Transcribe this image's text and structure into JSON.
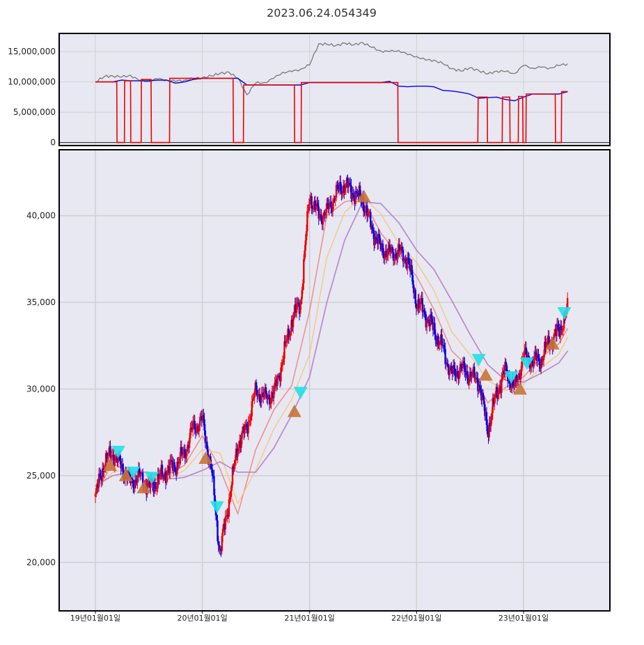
{
  "chart_data": [
    {
      "type": "line",
      "panel": "top",
      "title": "2023.06.24.054349",
      "ylim": [
        -500000,
        18000000
      ],
      "yticks": [
        0,
        5000000,
        10000000,
        15000000
      ],
      "ytick_labels": [
        "0",
        "5,000,000",
        "10,000,000",
        "15,000,000"
      ],
      "grid": true,
      "colors": {
        "gray": "#808080",
        "blue": "#0000ee",
        "red": "#ee0000"
      },
      "series": [
        {
          "color": "#808080",
          "x": [
            "2019-01-01",
            "2019-02-01",
            "2019-03-01",
            "2019-04-01",
            "2019-05-01",
            "2019-06-01",
            "2019-07-01",
            "2019-08-01",
            "2019-09-01",
            "2019-10-01",
            "2019-11-01",
            "2019-12-01",
            "2020-01-01",
            "2020-02-01",
            "2020-03-01",
            "2020-04-01",
            "2020-05-01",
            "2020-06-01",
            "2020-07-01",
            "2020-08-01",
            "2020-09-01",
            "2020-10-01",
            "2020-11-01",
            "2020-12-01",
            "2021-01-01",
            "2021-02-01",
            "2021-03-01",
            "2021-04-01",
            "2021-05-01",
            "2021-06-01",
            "2021-07-01",
            "2021-08-01",
            "2021-09-01",
            "2021-10-01",
            "2021-11-01",
            "2021-12-01",
            "2022-01-01",
            "2022-02-01",
            "2022-03-01",
            "2022-04-01",
            "2022-05-01",
            "2022-06-01",
            "2022-07-01",
            "2022-08-01",
            "2022-09-01",
            "2022-10-01",
            "2022-11-01",
            "2022-12-01",
            "2023-01-01",
            "2023-02-01",
            "2023-03-01",
            "2023-04-01",
            "2023-05-01",
            "2023-06-01"
          ],
          "values": [
            10000000,
            10900000,
            11000000,
            10800000,
            11100000,
            10200000,
            10100000,
            10500000,
            10300000,
            10100000,
            10300000,
            10500000,
            10700000,
            11000000,
            11400000,
            11600000,
            10600000,
            7900000,
            9800000,
            9900000,
            10600000,
            11600000,
            11700000,
            12100000,
            12800000,
            16300000,
            16200000,
            16000000,
            16400000,
            16100000,
            16500000,
            15700000,
            15100000,
            15000000,
            15200000,
            14500000,
            14200000,
            13600000,
            13600000,
            13000000,
            12200000,
            11800000,
            12300000,
            11900000,
            11300000,
            11800000,
            11700000,
            11400000,
            12700000,
            12300000,
            12400000,
            12300000,
            12700000,
            13000000
          ]
        },
        {
          "color": "#0000ee",
          "x": [
            "2019-01-01",
            "2019-02-01",
            "2019-03-01",
            "2019-04-01",
            "2019-05-01",
            "2019-06-01",
            "2019-07-01",
            "2019-08-01",
            "2019-09-01",
            "2019-10-01",
            "2019-11-01",
            "2019-12-01",
            "2020-01-01",
            "2020-02-01",
            "2020-03-01",
            "2020-04-01",
            "2020-05-01",
            "2020-06-01",
            "2020-07-01",
            "2020-08-01",
            "2020-09-01",
            "2020-10-01",
            "2020-11-01",
            "2020-12-01",
            "2021-01-01",
            "2021-02-01",
            "2021-03-01",
            "2021-04-01",
            "2021-05-01",
            "2021-06-01",
            "2021-07-01",
            "2021-08-01",
            "2021-09-01",
            "2021-10-01",
            "2021-11-01",
            "2021-12-01",
            "2022-01-01",
            "2022-02-01",
            "2022-03-01",
            "2022-04-01",
            "2022-05-01",
            "2022-06-01",
            "2022-07-01",
            "2022-08-01",
            "2022-09-01",
            "2022-10-01",
            "2022-11-01",
            "2022-12-01",
            "2023-01-01",
            "2023-02-01",
            "2023-03-01",
            "2023-04-01",
            "2023-05-01",
            "2023-06-01"
          ],
          "values": [
            10000000,
            10000000,
            10000000,
            10300000,
            10200000,
            10200000,
            10200000,
            10300000,
            10300000,
            9800000,
            10000000,
            10400000,
            10600000,
            10600000,
            10600000,
            10600000,
            10600000,
            9500000,
            9500000,
            9500000,
            9500000,
            9500000,
            9500000,
            9500000,
            9900000,
            9900000,
            9900000,
            9900000,
            9900000,
            9900000,
            9900000,
            9900000,
            9900000,
            10100000,
            9300000,
            9200000,
            9300000,
            9300000,
            9200000,
            8600000,
            8500000,
            8300000,
            8000000,
            7300000,
            7400000,
            7500000,
            7100000,
            6900000,
            7500000,
            8000000,
            8000000,
            8000000,
            8000000,
            8400000
          ]
        },
        {
          "color": "#ee0000",
          "x": [
            "2019-01-01",
            "2019-03-15",
            "2019-03-16",
            "2019-04-10",
            "2019-04-11",
            "2019-05-01",
            "2019-05-02",
            "2019-06-06",
            "2019-06-07",
            "2019-07-10",
            "2019-07-11",
            "2019-09-11",
            "2019-09-12",
            "2020-01-02",
            "2020-01-03",
            "2020-04-15",
            "2020-04-16",
            "2020-05-20",
            "2020-05-21",
            "2020-11-10",
            "2020-11-11",
            "2020-12-03",
            "2020-12-04",
            "2021-10-29",
            "2021-10-30",
            "2022-07-29",
            "2022-07-30",
            "2022-08-30",
            "2022-08-31",
            "2022-10-20",
            "2022-10-21",
            "2022-11-15",
            "2022-11-16",
            "2022-12-14",
            "2022-12-15",
            "2022-12-29",
            "2022-12-30",
            "2023-01-09",
            "2023-01-10",
            "2023-04-19",
            "2023-04-20",
            "2023-05-10",
            "2023-05-11",
            "2023-06-01"
          ],
          "values": [
            10000000,
            10000000,
            0,
            0,
            10200000,
            10200000,
            0,
            0,
            10400000,
            10400000,
            0,
            0,
            10600000,
            10600000,
            10600000,
            10600000,
            0,
            0,
            9500000,
            9500000,
            0,
            0,
            9900000,
            9900000,
            0,
            0,
            7500000,
            7500000,
            0,
            0,
            7500000,
            7500000,
            0,
            0,
            7600000,
            7600000,
            0,
            0,
            8000000,
            8000000,
            0,
            0,
            8400000,
            8400000
          ]
        }
      ]
    },
    {
      "type": "candlestick",
      "panel": "bottom",
      "ylim": [
        17200,
        43800
      ],
      "yticks": [
        20000,
        25000,
        30000,
        35000,
        40000
      ],
      "ytick_labels": [
        "20,000",
        "25,000",
        "30,000",
        "35,000",
        "40,000"
      ],
      "xlim": [
        "2018-10-21",
        "2023-08-15"
      ],
      "xticks": [
        "2019-01-01",
        "2020-01-01",
        "2021-01-01",
        "2022-01-01",
        "2023-01-01"
      ],
      "xtick_labels": [
        "19년01월01일",
        "20년01월01일",
        "21년01월01일",
        "22년01월01일",
        "23년01월01일"
      ],
      "grid": true,
      "colors": {
        "up": "#ee0000",
        "down": "#0000ee",
        "ma_fast": "#f08080",
        "ma_mid": "#f5c77e",
        "ma_slow": "#b57cc4",
        "buy_marker": "#c8733a",
        "sell_marker": "#22e0e8"
      },
      "price": {
        "x": [
          "2019-01-01",
          "2019-02-01",
          "2019-03-01",
          "2019-04-01",
          "2019-05-01",
          "2019-06-01",
          "2019-07-01",
          "2019-08-01",
          "2019-09-01",
          "2019-10-01",
          "2019-11-01",
          "2019-12-01",
          "2020-01-01",
          "2020-02-01",
          "2020-03-01",
          "2020-04-01",
          "2020-05-01",
          "2020-06-01",
          "2020-07-01",
          "2020-08-01",
          "2020-09-01",
          "2020-10-01",
          "2020-11-01",
          "2020-12-01",
          "2021-01-01",
          "2021-02-01",
          "2021-03-01",
          "2021-04-01",
          "2021-05-01",
          "2021-06-01",
          "2021-07-01",
          "2021-08-01",
          "2021-09-01",
          "2021-10-01",
          "2021-11-01",
          "2021-12-01",
          "2022-01-01",
          "2022-02-01",
          "2022-03-01",
          "2022-04-01",
          "2022-05-01",
          "2022-06-01",
          "2022-07-01",
          "2022-08-01",
          "2022-09-01",
          "2022-10-01",
          "2022-11-01",
          "2022-12-01",
          "2023-01-01",
          "2023-02-01",
          "2023-03-01",
          "2023-04-01",
          "2023-05-01",
          "2023-06-01"
        ],
        "values": [
          23800,
          25800,
          26300,
          25500,
          24600,
          25000,
          24300,
          24700,
          25300,
          25600,
          26300,
          27800,
          28200,
          25300,
          20500,
          23600,
          26800,
          27800,
          29900,
          29500,
          29700,
          31700,
          34000,
          35000,
          41200,
          40000,
          40200,
          41300,
          41800,
          41300,
          40900,
          39300,
          38100,
          37800,
          37900,
          37500,
          35000,
          34300,
          33400,
          32300,
          30800,
          31200,
          30800,
          30500,
          27600,
          29800,
          31100,
          30000,
          31900,
          31600,
          31700,
          32800,
          33300,
          34600
        ]
      },
      "ma_fast": {
        "x": [
          "2019-01-01",
          "2019-03-01",
          "2019-05-01",
          "2019-07-01",
          "2019-09-01",
          "2019-11-01",
          "2020-01-01",
          "2020-03-01",
          "2020-05-01",
          "2020-07-01",
          "2020-09-01",
          "2020-11-01",
          "2021-01-01",
          "2021-03-01",
          "2021-05-01",
          "2021-07-01",
          "2021-09-01",
          "2021-11-01",
          "2022-01-01",
          "2022-03-01",
          "2022-05-01",
          "2022-07-01",
          "2022-09-01",
          "2022-11-01",
          "2023-01-01",
          "2023-03-01",
          "2023-05-01",
          "2023-06-01"
        ],
        "values": [
          24000,
          25700,
          25200,
          24600,
          25000,
          25600,
          27300,
          25400,
          22800,
          26500,
          28800,
          30200,
          34500,
          40000,
          40800,
          41000,
          39000,
          37700,
          36500,
          34600,
          32200,
          31200,
          29200,
          30100,
          30700,
          31800,
          32600,
          33500
        ]
      },
      "ma_mid": {
        "x": [
          "2019-01-01",
          "2019-03-01",
          "2019-05-01",
          "2019-07-01",
          "2019-09-01",
          "2019-11-01",
          "2020-01-01",
          "2020-03-01",
          "2020-05-01",
          "2020-07-01",
          "2020-09-01",
          "2020-11-01",
          "2021-01-01",
          "2021-03-01",
          "2021-05-01",
          "2021-07-01",
          "2021-09-01",
          "2021-11-01",
          "2022-01-01",
          "2022-03-01",
          "2022-05-01",
          "2022-07-01",
          "2022-09-01",
          "2022-11-01",
          "2023-01-01",
          "2023-03-01",
          "2023-05-01",
          "2023-06-01"
        ],
        "values": [
          24200,
          25200,
          25400,
          24900,
          24800,
          25300,
          26500,
          26300,
          23400,
          25300,
          27700,
          29400,
          32000,
          37600,
          40200,
          41100,
          40100,
          38400,
          37300,
          35700,
          33300,
          32000,
          30500,
          29900,
          30300,
          31200,
          32000,
          33000
        ]
      },
      "ma_slow": {
        "x": [
          "2019-01-01",
          "2019-03-01",
          "2019-05-01",
          "2019-07-01",
          "2019-09-01",
          "2019-11-01",
          "2020-01-01",
          "2020-03-01",
          "2020-05-01",
          "2020-07-01",
          "2020-09-01",
          "2020-11-01",
          "2021-01-01",
          "2021-03-01",
          "2021-05-01",
          "2021-07-01",
          "2021-09-01",
          "2021-11-01",
          "2022-01-01",
          "2022-03-01",
          "2022-05-01",
          "2022-07-01",
          "2022-09-01",
          "2022-11-01",
          "2023-01-01",
          "2023-03-01",
          "2023-05-01",
          "2023-06-01"
        ],
        "values": [
          24400,
          25000,
          25200,
          25200,
          24800,
          24900,
          25300,
          25800,
          25200,
          25200,
          26600,
          28500,
          30700,
          35000,
          38600,
          40800,
          40700,
          39600,
          38000,
          36900,
          35100,
          33200,
          31400,
          30500,
          30400,
          30900,
          31500,
          32200
        ]
      },
      "buy_markers": [
        {
          "x": "2019-02-20",
          "y": 25600
        },
        {
          "x": "2019-04-15",
          "y": 25000
        },
        {
          "x": "2019-06-15",
          "y": 24300
        },
        {
          "x": "2020-01-12",
          "y": 26000
        },
        {
          "x": "2020-11-10",
          "y": 28700
        },
        {
          "x": "2021-07-05",
          "y": 41100
        },
        {
          "x": "2022-08-25",
          "y": 30800
        },
        {
          "x": "2022-12-20",
          "y": 30000
        },
        {
          "x": "2023-04-10",
          "y": 32600
        }
      ],
      "sell_markers": [
        {
          "x": "2019-03-20",
          "y": 26400
        },
        {
          "x": "2019-05-10",
          "y": 25200
        },
        {
          "x": "2019-07-12",
          "y": 24900
        },
        {
          "x": "2020-02-20",
          "y": 23200
        },
        {
          "x": "2020-12-01",
          "y": 29800
        },
        {
          "x": "2022-08-01",
          "y": 31700
        },
        {
          "x": "2022-11-20",
          "y": 30700
        },
        {
          "x": "2023-01-12",
          "y": 31500
        },
        {
          "x": "2023-05-20",
          "y": 34400
        }
      ]
    }
  ]
}
